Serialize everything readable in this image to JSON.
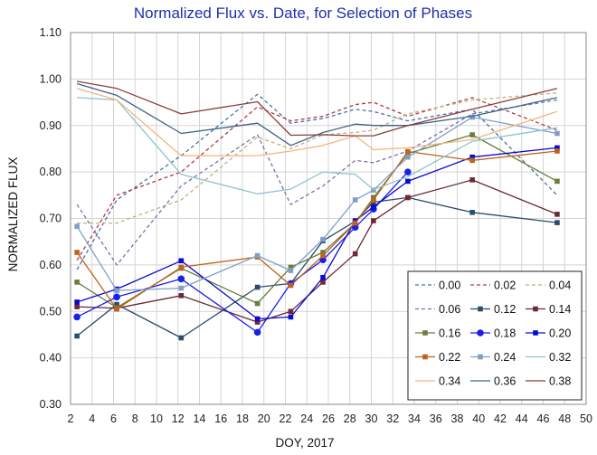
{
  "chart_data": {
    "type": "line",
    "title": "Normalized Flux vs. Date, for Selection of Phases",
    "xlabel": "DOY, 2017",
    "ylabel": "NORMALIZED FLUX",
    "xlim": [
      2,
      50
    ],
    "ylim": [
      0.3,
      1.1
    ],
    "xticks": [
      "2",
      "4",
      "6",
      "8",
      "10",
      "12",
      "14",
      "16",
      "18",
      "20",
      "22",
      "24",
      "26",
      "28",
      "30",
      "32",
      "34",
      "36",
      "38",
      "40",
      "42",
      "44",
      "46",
      "48",
      "50"
    ],
    "yticks": [
      "0.30",
      "0.40",
      "0.50",
      "0.60",
      "0.70",
      "0.80",
      "0.90",
      "1.00",
      "1.10"
    ],
    "grid": true,
    "legend_position": "bottom-right",
    "series": [
      {
        "name": "0.00",
        "color": "#4a6fa5",
        "dash": true,
        "marker": "none",
        "points": [
          [
            2.6,
            0.59
          ],
          [
            6.3,
            0.74
          ],
          [
            12.3,
            0.835
          ],
          [
            19.4,
            0.967
          ],
          [
            22.5,
            0.905
          ],
          [
            25.5,
            0.915
          ],
          [
            28.5,
            0.935
          ],
          [
            30.2,
            0.93
          ],
          [
            33.4,
            0.91
          ],
          [
            39.4,
            0.935
          ],
          [
            47.3,
            0.75
          ]
        ]
      },
      {
        "name": "0.02",
        "color": "#b03a48",
        "dash": true,
        "marker": "none",
        "points": [
          [
            2.6,
            0.61
          ],
          [
            6.3,
            0.75
          ],
          [
            12.3,
            0.8
          ],
          [
            19.4,
            0.94
          ],
          [
            22.5,
            0.91
          ],
          [
            25.5,
            0.92
          ],
          [
            28.5,
            0.945
          ],
          [
            30.2,
            0.95
          ],
          [
            33.4,
            0.92
          ],
          [
            39.4,
            0.96
          ],
          [
            47.3,
            0.89
          ]
        ]
      },
      {
        "name": "0.04",
        "color": "#c2b07a",
        "dash": true,
        "marker": "none",
        "points": [
          [
            2.6,
            0.69
          ],
          [
            6.3,
            0.69
          ],
          [
            12.3,
            0.74
          ],
          [
            19.4,
            0.875
          ],
          [
            22.5,
            0.85
          ],
          [
            25.5,
            0.88
          ],
          [
            28.5,
            0.885
          ],
          [
            30.2,
            0.89
          ],
          [
            33.4,
            0.925
          ],
          [
            39.4,
            0.955
          ],
          [
            47.3,
            0.97
          ]
        ]
      },
      {
        "name": "0.06",
        "color": "#7a6fa8",
        "dash": true,
        "marker": "none",
        "points": [
          [
            2.6,
            0.73
          ],
          [
            6.3,
            0.6
          ],
          [
            12.3,
            0.77
          ],
          [
            19.4,
            0.88
          ],
          [
            22.5,
            0.73
          ],
          [
            25.5,
            0.77
          ],
          [
            28.5,
            0.825
          ],
          [
            30.2,
            0.82
          ],
          [
            33.4,
            0.845
          ],
          [
            39.4,
            0.925
          ],
          [
            47.3,
            0.955
          ]
        ]
      },
      {
        "name": "0.12",
        "color": "#2b4c6e",
        "dash": false,
        "marker": "square",
        "points": [
          [
            2.6,
            0.447
          ],
          [
            6.3,
            0.515
          ],
          [
            12.3,
            0.443
          ],
          [
            19.4,
            0.552
          ],
          [
            22.5,
            0.56
          ],
          [
            25.5,
            0.652
          ],
          [
            28.5,
            0.694
          ],
          [
            30.2,
            0.735
          ],
          [
            33.4,
            0.745
          ],
          [
            39.4,
            0.713
          ],
          [
            47.3,
            0.691
          ]
        ]
      },
      {
        "name": "0.14",
        "color": "#6b2a35",
        "dash": false,
        "marker": "square",
        "points": [
          [
            2.6,
            0.51
          ],
          [
            6.3,
            0.507
          ],
          [
            12.3,
            0.534
          ],
          [
            19.4,
            0.477
          ],
          [
            22.5,
            0.5
          ],
          [
            25.5,
            0.563
          ],
          [
            28.5,
            0.624
          ],
          [
            30.2,
            0.695
          ],
          [
            33.4,
            0.745
          ],
          [
            39.4,
            0.783
          ],
          [
            47.3,
            0.709
          ]
        ]
      },
      {
        "name": "0.16",
        "color": "#6a7d3a",
        "dash": false,
        "marker": "square",
        "points": [
          [
            2.6,
            0.563
          ],
          [
            6.3,
            0.508
          ],
          [
            12.3,
            0.593
          ],
          [
            19.4,
            0.517
          ],
          [
            22.5,
            0.595
          ],
          [
            25.5,
            0.627
          ],
          [
            28.5,
            0.69
          ],
          [
            30.2,
            0.745
          ],
          [
            33.4,
            0.84
          ],
          [
            39.4,
            0.88
          ],
          [
            47.3,
            0.78
          ]
        ]
      },
      {
        "name": "0.18",
        "color": "#1a1ee8",
        "dash": false,
        "marker": "circle",
        "points": [
          [
            2.6,
            0.488
          ],
          [
            6.3,
            0.531
          ],
          [
            12.3,
            0.57
          ],
          [
            19.4,
            0.455
          ],
          [
            22.5,
            0.56
          ],
          [
            25.5,
            0.611
          ],
          [
            28.5,
            0.681
          ],
          [
            30.2,
            0.72
          ],
          [
            33.4,
            0.8
          ]
        ]
      },
      {
        "name": "0.20",
        "color": "#0a0ad0",
        "dash": false,
        "marker": "square",
        "points": [
          [
            2.6,
            0.52
          ],
          [
            6.3,
            0.548
          ],
          [
            12.3,
            0.609
          ],
          [
            19.4,
            0.484
          ],
          [
            22.5,
            0.488
          ],
          [
            25.5,
            0.573
          ],
          [
            28.5,
            0.695
          ],
          [
            30.2,
            0.725
          ],
          [
            33.4,
            0.78
          ],
          [
            39.4,
            0.832
          ],
          [
            47.3,
            0.852
          ]
        ]
      },
      {
        "name": "0.22",
        "color": "#c0621a",
        "dash": false,
        "marker": "square",
        "points": [
          [
            2.6,
            0.627
          ],
          [
            6.3,
            0.505
          ],
          [
            12.3,
            0.595
          ],
          [
            19.4,
            0.617
          ],
          [
            22.5,
            0.556
          ],
          [
            25.5,
            0.62
          ],
          [
            28.5,
            0.69
          ],
          [
            30.2,
            0.74
          ],
          [
            33.4,
            0.844
          ],
          [
            39.4,
            0.825
          ],
          [
            47.3,
            0.845
          ]
        ]
      },
      {
        "name": "0.24",
        "color": "#7f9fc9",
        "dash": false,
        "marker": "square",
        "points": [
          [
            2.6,
            0.683
          ],
          [
            6.3,
            0.545
          ],
          [
            12.3,
            0.55
          ],
          [
            19.4,
            0.62
          ],
          [
            22.5,
            0.588
          ],
          [
            25.5,
            0.655
          ],
          [
            28.5,
            0.74
          ],
          [
            30.2,
            0.761
          ],
          [
            33.4,
            0.832
          ],
          [
            39.4,
            0.918
          ],
          [
            47.3,
            0.883
          ]
        ]
      },
      {
        "name": "0.32",
        "color": "#8ec3cf",
        "dash": false,
        "marker": "none",
        "points": [
          [
            2.6,
            0.96
          ],
          [
            6.3,
            0.955
          ],
          [
            12.3,
            0.795
          ],
          [
            19.4,
            0.753
          ],
          [
            22.5,
            0.763
          ],
          [
            25.5,
            0.8
          ],
          [
            28.5,
            0.795
          ],
          [
            30.2,
            0.762
          ],
          [
            33.4,
            0.79
          ],
          [
            39.4,
            0.866
          ],
          [
            47.3,
            0.895
          ]
        ]
      },
      {
        "name": "0.34",
        "color": "#f2b67c",
        "dash": false,
        "marker": "none",
        "points": [
          [
            2.6,
            0.98
          ],
          [
            6.3,
            0.955
          ],
          [
            12.3,
            0.835
          ],
          [
            19.4,
            0.835
          ],
          [
            22.5,
            0.845
          ],
          [
            25.5,
            0.857
          ],
          [
            28.5,
            0.878
          ],
          [
            30.2,
            0.848
          ],
          [
            33.4,
            0.852
          ],
          [
            39.4,
            0.87
          ],
          [
            47.3,
            0.93
          ]
        ]
      },
      {
        "name": "0.36",
        "color": "#3d6384",
        "dash": false,
        "marker": "none",
        "points": [
          [
            2.6,
            0.99
          ],
          [
            6.3,
            0.965
          ],
          [
            12.3,
            0.883
          ],
          [
            19.4,
            0.905
          ],
          [
            22.5,
            0.857
          ],
          [
            25.5,
            0.885
          ],
          [
            28.5,
            0.903
          ],
          [
            30.2,
            0.9
          ],
          [
            33.4,
            0.9
          ],
          [
            39.4,
            0.92
          ],
          [
            47.3,
            0.96
          ]
        ]
      },
      {
        "name": "0.38",
        "color": "#8b3d3f",
        "dash": false,
        "marker": "none",
        "points": [
          [
            2.6,
            0.995
          ],
          [
            6.3,
            0.98
          ],
          [
            12.3,
            0.925
          ],
          [
            19.4,
            0.951
          ],
          [
            22.5,
            0.879
          ],
          [
            25.5,
            0.88
          ],
          [
            28.5,
            0.878
          ],
          [
            30.2,
            0.878
          ],
          [
            33.4,
            0.9
          ],
          [
            39.4,
            0.935
          ],
          [
            47.3,
            0.98
          ]
        ]
      }
    ]
  }
}
